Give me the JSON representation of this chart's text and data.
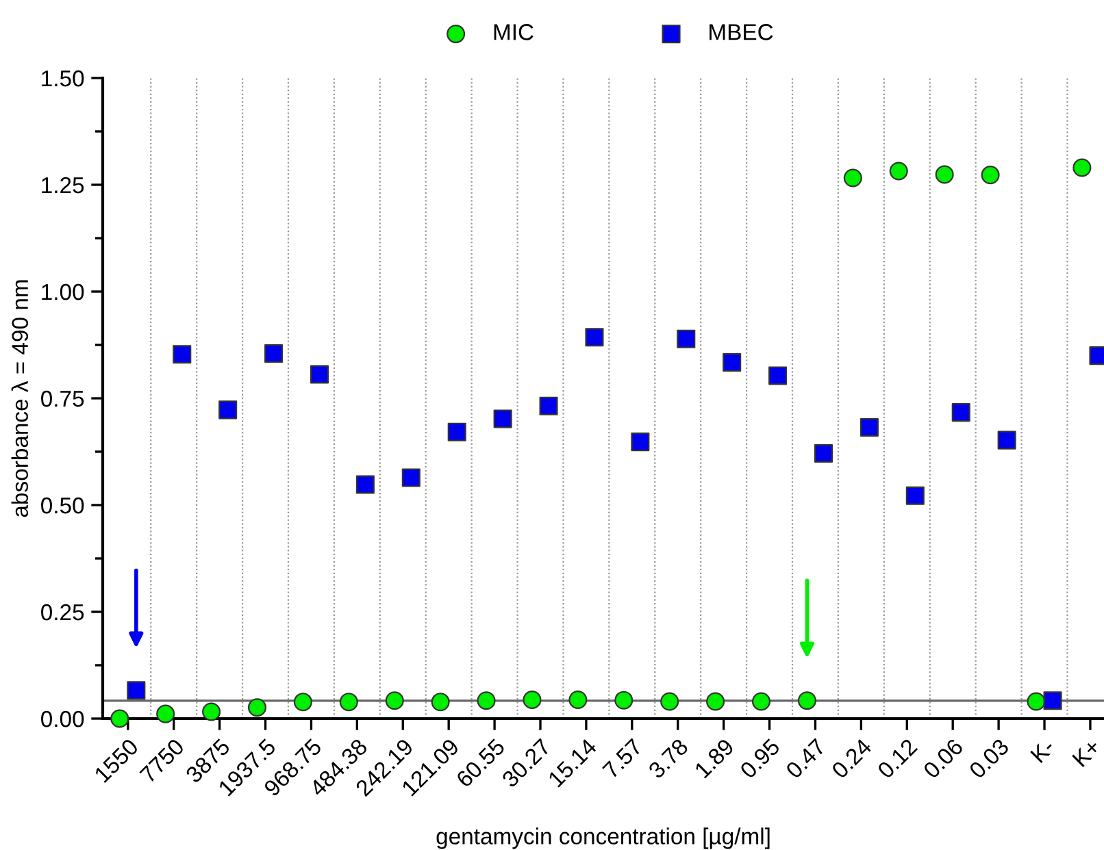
{
  "chart_data": {
    "type": "scatter",
    "xlabel": "gentamycin concentration [µg/ml]",
    "ylabel": "absorbance λ = 490 nm",
    "categories": [
      "1550",
      "7750",
      "3875",
      "1937.5",
      "968.75",
      "484.38",
      "242.19",
      "121.09",
      "60.55",
      "30.27",
      "15.14",
      "7.57",
      "3.78",
      "1.89",
      "0.95",
      "0.47",
      "0.24",
      "0.12",
      "0.06",
      "0.03",
      "K-",
      "K+"
    ],
    "series": [
      {
        "name": "MIC",
        "color": "#00ee00",
        "marker": "circle",
        "values": [
          0.0,
          0.011,
          0.016,
          0.026,
          0.039,
          0.039,
          0.042,
          0.039,
          0.042,
          0.044,
          0.044,
          0.043,
          0.04,
          0.04,
          0.04,
          0.042,
          1.266,
          1.282,
          1.274,
          1.273,
          0.04,
          1.29
        ]
      },
      {
        "name": "MBEC",
        "color": "#0000ee",
        "marker": "square",
        "values": [
          0.066,
          0.853,
          0.723,
          0.855,
          0.806,
          0.548,
          0.564,
          0.671,
          0.702,
          0.732,
          0.893,
          0.648,
          0.889,
          0.834,
          0.803,
          0.621,
          0.682,
          0.522,
          0.717,
          0.652,
          0.042,
          0.85
        ]
      }
    ],
    "ylim": [
      0,
      1.5
    ],
    "yticks": [
      {
        "value": 0,
        "label": "0.00"
      },
      {
        "value": 0.25,
        "label": "0.25"
      },
      {
        "value": 0.5,
        "label": "0.50"
      },
      {
        "value": 0.75,
        "label": "0.75"
      },
      {
        "value": 1.0,
        "label": "1.00"
      },
      {
        "value": 1.25,
        "label": "1.25"
      },
      {
        "value": 1.5,
        "label": "1.50"
      }
    ],
    "ref_lines": [
      {
        "axis": "y",
        "value": 0.042,
        "color": "#666666"
      }
    ],
    "grid": "x",
    "legend": "top"
  }
}
